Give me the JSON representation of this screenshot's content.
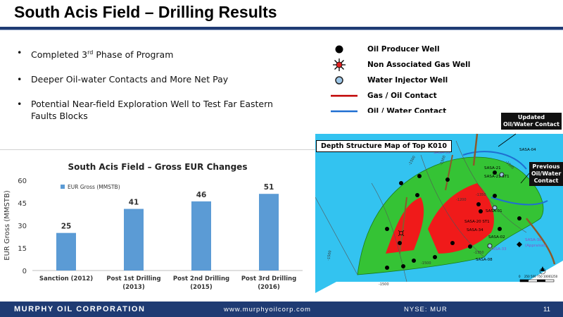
{
  "slide": {
    "title": "South Acis Field – Drilling Results",
    "page_number": "11"
  },
  "bullets": [
    {
      "text_before": "Completed 3",
      "sup": "rd",
      "text_after": " Phase of Program"
    },
    {
      "text_before": "Deeper Oil-water Contacts and More Net Pay",
      "sup": "",
      "text_after": ""
    },
    {
      "text_before": "Potential Near-field Exploration Well to Test Far Eastern Faults Blocks",
      "sup": "",
      "text_after": ""
    }
  ],
  "legend": {
    "items": [
      {
        "label": "Oil Producer Well",
        "icon": "black-dot-icon"
      },
      {
        "label": "Non Associated Gas Well",
        "icon": "gas-star-icon"
      },
      {
        "label": "Water Injector Well",
        "icon": "open-circle-icon"
      },
      {
        "label": "Gas / Oil Contact",
        "icon": "red-line-icon",
        "color": "#c00000"
      },
      {
        "label": "Oil / Water Contact",
        "icon": "blue-line-icon",
        "color": "#1f6fd1"
      }
    ]
  },
  "map": {
    "box_label": "Depth Structure Map of Top K010",
    "callout_updated": "Updated Oil/Water Contact",
    "callout_previous": "Previous Oil/Water Contact",
    "wells": [
      "SASA-35",
      "SASA-04",
      "SASA-21",
      "SASA-21 ST1",
      "SASA-01",
      "SASA-20 ST1",
      "SASA-34",
      "SASA-02",
      "SASA-33",
      "SASA-08",
      "SASA-38",
      "(Appraisal)"
    ],
    "contours": [
      "-1500",
      "-1200",
      "-1350",
      "-1500",
      "-1500",
      "-1350",
      "-1500",
      "-1500",
      "-1500"
    ],
    "scale_labels": [
      "0",
      "250",
      "500",
      "750",
      "1000",
      "1250"
    ],
    "colors": {
      "water": "#33c3f0",
      "oil": "#35c335",
      "gas": "#f01a1a"
    }
  },
  "chart_data": {
    "type": "bar",
    "title": "South Acis Field – Gross EUR Changes",
    "ylabel": "EUR Gross (MMSTB)",
    "xlabel": "",
    "categories": [
      [
        "Sanction (2012)"
      ],
      [
        "Post 1st Drilling",
        "(2013)"
      ],
      [
        "Post 2nd Drilling",
        "(2015)"
      ],
      [
        "Post 3rd Drilling",
        "(2016)"
      ]
    ],
    "series": [
      {
        "name": "EUR Gross (MMSTB)",
        "values": [
          25,
          41,
          46,
          51
        ],
        "color": "#5b9bd5"
      }
    ],
    "ylim": [
      0,
      60
    ],
    "yticks": [
      0,
      15,
      30,
      45,
      60
    ],
    "grid": false,
    "legend_position": "top-left"
  },
  "footer": {
    "company": "MURPHY OIL CORPORATION",
    "website": "www.murphyoilcorp.com",
    "ticker": "NYSE: MUR"
  },
  "theme": {
    "navy": "#1f3b73"
  }
}
